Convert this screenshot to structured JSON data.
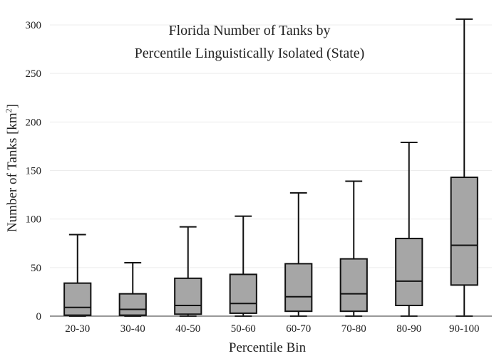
{
  "chart_data": {
    "type": "box",
    "title_lines": [
      "Florida Number of Tanks by",
      "Percentile Linguistically Isolated (State)"
    ],
    "xlabel": "Percentile Bin",
    "ylabel_main": "Number of Tanks  [km",
    "ylabel_sup": "2",
    "ylabel_close": "]",
    "ylim": [
      0,
      300
    ],
    "yticks": [
      0,
      50,
      100,
      150,
      200,
      250,
      300
    ],
    "grid": true,
    "categories": [
      "20-30",
      "30-40",
      "40-50",
      "50-60",
      "60-70",
      "70-80",
      "80-90",
      "90-100"
    ],
    "boxes": [
      {
        "label": "20-30",
        "whisker_low": 0,
        "q1": 1,
        "median": 9,
        "q3": 34,
        "whisker_high": 84
      },
      {
        "label": "30-40",
        "whisker_low": 0,
        "q1": 1,
        "median": 7,
        "q3": 23,
        "whisker_high": 55
      },
      {
        "label": "40-50",
        "whisker_low": 0,
        "q1": 2,
        "median": 11,
        "q3": 39,
        "whisker_high": 92
      },
      {
        "label": "50-60",
        "whisker_low": 0,
        "q1": 3,
        "median": 13,
        "q3": 43,
        "whisker_high": 103
      },
      {
        "label": "60-70",
        "whisker_low": 0,
        "q1": 5,
        "median": 20,
        "q3": 54,
        "whisker_high": 127
      },
      {
        "label": "70-80",
        "whisker_low": 0,
        "q1": 5,
        "median": 23,
        "q3": 59,
        "whisker_high": 139
      },
      {
        "label": "80-90",
        "whisker_low": 0,
        "q1": 11,
        "median": 36,
        "q3": 80,
        "whisker_high": 179
      },
      {
        "label": "90-100",
        "whisker_low": 0,
        "q1": 32,
        "median": 73,
        "q3": 143,
        "whisker_high": 306
      }
    ],
    "colors": {
      "box_fill": "#a6a6a6",
      "line": "#111111",
      "grid": "#ececec",
      "axis": "#333333"
    }
  }
}
